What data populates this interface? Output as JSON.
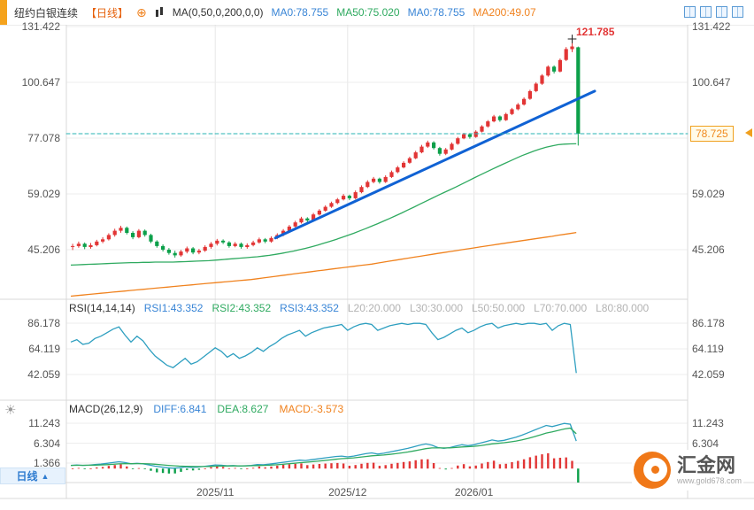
{
  "header": {
    "title": "纽约白银连续",
    "period_tag": "【日线】",
    "ma_group_label": "MA(0,50,0,200,0,0)",
    "ma_values": [
      {
        "label": "MA0:78.755",
        "color": "#3985d6"
      },
      {
        "label": "MA50:75.020",
        "color": "#2faa60"
      },
      {
        "label": "MA0:78.755",
        "color": "#3985d6"
      },
      {
        "label": "MA200:49.07",
        "color": "#f0821e"
      }
    ]
  },
  "price_marker": {
    "peak_label": "121.785",
    "current_label": "78.725"
  },
  "rsi_header": {
    "title": "RSI(14,14,14)",
    "values": [
      {
        "label": "RSI1:43.352",
        "color": "#3985d6"
      },
      {
        "label": "RSI2:43.352",
        "color": "#2faa60"
      },
      {
        "label": "RSI3:43.352",
        "color": "#3985d6"
      }
    ],
    "levels": [
      "L20:20.000",
      "L30:30.000",
      "L50:50.000",
      "L70:70.000",
      "L80:80.000"
    ]
  },
  "macd_header": {
    "title": "MACD(26,12,9)",
    "diff_label": "DIFF:6.841",
    "dea_label": "DEA:8.627",
    "macd_label": "MACD:-3.573"
  },
  "footer": {
    "period_button": "日线",
    "logo_text": "汇金网",
    "logo_url": "www.gold678.com"
  },
  "colors": {
    "up": "#e23535",
    "down": "#0ca04a",
    "ma50": "#2faa60",
    "ma200": "#f0821e",
    "trendline": "#1062d4",
    "rsi_line": "#2e9fc0",
    "price_line": "#27b3b3",
    "diff_line": "#2e9fc0",
    "dea_line": "#2faa60",
    "grid": "#ededed",
    "frame": "#d9d9d9"
  },
  "chart_data": {
    "type": "candlestick",
    "instrument": "纽约白银连续",
    "period": "日线",
    "title": "纽约白银连续【日线】",
    "price_axis": {
      "scale": "log",
      "gridline_prices": [
        131.422,
        100.647,
        77.078,
        59.029,
        45.206
      ]
    },
    "current_price": 78.725,
    "peak_price": 121.785,
    "peak_bar": 83,
    "time_ticks": [
      {
        "label": "2025/11",
        "bar": 24
      },
      {
        "label": "2025/12",
        "bar": 46
      },
      {
        "label": "2026/01",
        "bar": 67
      }
    ],
    "trendline": {
      "start_bar": 34,
      "start_price": 47.8,
      "end_x": 672,
      "end_price": 96.5
    },
    "candles_ohlc": [
      [
        45.8,
        46.4,
        45.2,
        46.0
      ],
      [
        46.0,
        46.9,
        45.7,
        46.5
      ],
      [
        46.5,
        46.7,
        45.4,
        45.8
      ],
      [
        45.8,
        46.6,
        45.5,
        46.2
      ],
      [
        46.2,
        47.3,
        46.0,
        47.0
      ],
      [
        47.0,
        47.9,
        46.7,
        47.5
      ],
      [
        47.5,
        48.8,
        47.3,
        48.5
      ],
      [
        48.5,
        49.9,
        48.2,
        49.5
      ],
      [
        49.5,
        50.6,
        49.1,
        50.2
      ],
      [
        50.2,
        50.4,
        48.7,
        49.0
      ],
      [
        49.0,
        49.3,
        47.6,
        48.0
      ],
      [
        48.0,
        49.8,
        47.8,
        49.5
      ],
      [
        49.5,
        49.7,
        48.2,
        48.5
      ],
      [
        48.5,
        48.7,
        46.7,
        47.0
      ],
      [
        47.0,
        47.2,
        45.7,
        46.0
      ],
      [
        46.0,
        46.3,
        44.9,
        45.2
      ],
      [
        45.2,
        45.5,
        44.2,
        44.5
      ],
      [
        44.5,
        44.9,
        43.6,
        44.0
      ],
      [
        44.0,
        45.1,
        43.8,
        44.8
      ],
      [
        44.8,
        45.8,
        44.5,
        45.5
      ],
      [
        45.5,
        45.7,
        44.3,
        44.6
      ],
      [
        44.6,
        45.3,
        44.3,
        45.0
      ],
      [
        45.0,
        46.1,
        44.8,
        45.8
      ],
      [
        45.8,
        46.8,
        45.5,
        46.5
      ],
      [
        46.5,
        47.5,
        46.2,
        47.2
      ],
      [
        47.2,
        47.4,
        46.5,
        46.8
      ],
      [
        46.8,
        47.0,
        45.7,
        46.0
      ],
      [
        46.0,
        46.8,
        45.8,
        46.5
      ],
      [
        46.5,
        46.7,
        45.5,
        45.8
      ],
      [
        45.8,
        46.5,
        45.5,
        46.2
      ],
      [
        46.2,
        47.1,
        46.0,
        46.8
      ],
      [
        46.8,
        47.8,
        46.6,
        47.5
      ],
      [
        47.5,
        47.7,
        46.7,
        47.0
      ],
      [
        47.0,
        48.1,
        46.8,
        47.8
      ],
      [
        47.8,
        48.8,
        47.6,
        48.5
      ],
      [
        48.5,
        49.8,
        48.3,
        49.5
      ],
      [
        49.5,
        50.8,
        49.3,
        50.5
      ],
      [
        50.5,
        51.8,
        50.3,
        51.5
      ],
      [
        51.5,
        52.8,
        51.3,
        52.5
      ],
      [
        52.5,
        52.7,
        51.6,
        52.0
      ],
      [
        52.0,
        53.8,
        51.8,
        53.5
      ],
      [
        53.5,
        54.8,
        53.3,
        54.5
      ],
      [
        54.5,
        55.8,
        54.3,
        55.5
      ],
      [
        55.5,
        56.8,
        55.3,
        56.5
      ],
      [
        56.5,
        57.8,
        56.3,
        57.5
      ],
      [
        57.5,
        58.9,
        57.3,
        58.5
      ],
      [
        58.5,
        58.7,
        57.4,
        57.8
      ],
      [
        57.8,
        59.9,
        57.6,
        59.5
      ],
      [
        59.5,
        61.4,
        59.3,
        61.0
      ],
      [
        61.0,
        62.9,
        60.8,
        62.5
      ],
      [
        62.5,
        63.9,
        62.2,
        63.5
      ],
      [
        63.5,
        63.7,
        62.1,
        62.5
      ],
      [
        62.5,
        64.4,
        62.3,
        64.0
      ],
      [
        64.0,
        65.9,
        63.8,
        65.5
      ],
      [
        65.5,
        67.4,
        65.3,
        67.0
      ],
      [
        67.0,
        68.9,
        66.8,
        68.5
      ],
      [
        68.5,
        70.4,
        68.3,
        70.0
      ],
      [
        70.0,
        72.4,
        69.8,
        72.0
      ],
      [
        72.0,
        74.5,
        71.8,
        74.0
      ],
      [
        74.0,
        76.0,
        73.7,
        75.5
      ],
      [
        75.5,
        75.8,
        73.1,
        73.5
      ],
      [
        73.5,
        73.8,
        71.0,
        71.5
      ],
      [
        71.5,
        73.4,
        71.2,
        73.0
      ],
      [
        73.0,
        75.4,
        72.8,
        75.0
      ],
      [
        75.0,
        77.4,
        74.8,
        77.0
      ],
      [
        77.0,
        78.9,
        76.8,
        78.5
      ],
      [
        78.5,
        78.8,
        77.0,
        77.5
      ],
      [
        77.5,
        79.9,
        77.3,
        79.5
      ],
      [
        79.5,
        81.9,
        79.3,
        81.5
      ],
      [
        81.5,
        83.9,
        81.2,
        83.5
      ],
      [
        83.5,
        86.0,
        83.3,
        85.5
      ],
      [
        85.5,
        85.8,
        83.5,
        84.0
      ],
      [
        84.0,
        86.9,
        83.8,
        86.5
      ],
      [
        86.5,
        88.9,
        86.2,
        88.5
      ],
      [
        88.5,
        91.0,
        88.2,
        90.5
      ],
      [
        90.5,
        93.5,
        90.2,
        93.0
      ],
      [
        93.0,
        97.0,
        92.7,
        96.5
      ],
      [
        96.5,
        100.5,
        96.2,
        100.0
      ],
      [
        100.0,
        104.5,
        99.6,
        104.0
      ],
      [
        104.0,
        109.0,
        103.6,
        108.5
      ],
      [
        108.5,
        109.0,
        105.2,
        106.0
      ],
      [
        106.0,
        112.6,
        105.7,
        112.0
      ],
      [
        112.0,
        118.9,
        111.6,
        118.0
      ],
      [
        118.0,
        121.785,
        116.5,
        119.5
      ],
      [
        119.0,
        119.2,
        74.5,
        78.725
      ]
    ],
    "ma50": [
      42.0,
      42.05,
      42.1,
      42.15,
      42.2,
      42.25,
      42.3,
      42.35,
      42.4,
      42.45,
      42.5,
      42.5,
      42.55,
      42.55,
      42.6,
      42.6,
      42.6,
      42.6,
      42.65,
      42.7,
      42.75,
      42.8,
      42.85,
      42.9,
      43.0,
      43.1,
      43.2,
      43.3,
      43.4,
      43.5,
      43.6,
      43.7,
      43.85,
      44.0,
      44.2,
      44.4,
      44.65,
      44.9,
      45.2,
      45.5,
      45.85,
      46.2,
      46.6,
      47.0,
      47.45,
      47.9,
      48.4,
      48.9,
      49.45,
      50.0,
      50.6,
      51.2,
      51.85,
      52.5,
      53.2,
      53.9,
      54.65,
      55.4,
      56.2,
      57.0,
      57.8,
      58.6,
      59.4,
      60.2,
      61.0,
      61.9,
      62.8,
      63.7,
      64.6,
      65.5,
      66.4,
      67.3,
      68.2,
      69.1,
      70.0,
      70.9,
      71.7,
      72.5,
      73.2,
      73.8,
      74.3,
      74.7,
      74.9,
      75.0,
      75.02
    ],
    "ma200": [
      36.2,
      36.3,
      36.4,
      36.5,
      36.6,
      36.7,
      36.8,
      36.9,
      37.0,
      37.1,
      37.2,
      37.3,
      37.4,
      37.5,
      37.6,
      37.7,
      37.8,
      37.9,
      38.0,
      38.1,
      38.2,
      38.3,
      38.4,
      38.5,
      38.6,
      38.7,
      38.8,
      38.9,
      39.0,
      39.1,
      39.2,
      39.35,
      39.5,
      39.65,
      39.8,
      39.95,
      40.1,
      40.25,
      40.4,
      40.55,
      40.7,
      40.85,
      41.0,
      41.15,
      41.3,
      41.45,
      41.6,
      41.75,
      41.9,
      42.05,
      42.2,
      42.4,
      42.6,
      42.8,
      43.0,
      43.2,
      43.4,
      43.6,
      43.8,
      44.0,
      44.2,
      44.4,
      44.6,
      44.8,
      45.0,
      45.2,
      45.4,
      45.6,
      45.8,
      46.0,
      46.2,
      46.4,
      46.6,
      46.8,
      47.0,
      47.2,
      47.4,
      47.6,
      47.8,
      48.0,
      48.2,
      48.45,
      48.65,
      48.85,
      49.07
    ],
    "rsi": {
      "axis_values": [
        86.178,
        64.119,
        42.059
      ],
      "series": [
        70,
        72,
        68,
        69,
        73,
        75,
        78,
        81,
        83,
        76,
        70,
        75,
        71,
        64,
        58,
        54,
        50,
        48,
        52,
        56,
        51,
        53,
        57,
        61,
        65,
        62,
        57,
        60,
        56,
        58,
        61,
        65,
        62,
        66,
        69,
        73,
        76,
        78,
        80,
        75,
        78,
        80,
        82,
        83,
        84,
        85,
        80,
        83,
        85,
        86,
        85,
        80,
        82,
        84,
        85,
        86,
        85,
        86,
        86,
        85,
        78,
        72,
        74,
        77,
        80,
        82,
        78,
        80,
        83,
        85,
        86,
        82,
        84,
        85,
        86,
        85,
        86,
        86,
        85,
        86,
        80,
        84,
        86,
        85,
        43.352
      ]
    },
    "macd": {
      "axis_values": [
        11.243,
        6.304,
        1.366
      ],
      "diff": [
        0.8,
        0.9,
        0.8,
        0.85,
        1.0,
        1.1,
        1.3,
        1.5,
        1.7,
        1.5,
        1.2,
        1.3,
        1.2,
        0.9,
        0.6,
        0.4,
        0.2,
        0.1,
        0.2,
        0.4,
        0.3,
        0.35,
        0.5,
        0.7,
        0.9,
        0.85,
        0.7,
        0.75,
        0.65,
        0.7,
        0.8,
        1.0,
        0.95,
        1.1,
        1.3,
        1.5,
        1.7,
        1.9,
        2.1,
        2.0,
        2.2,
        2.4,
        2.6,
        2.8,
        3.0,
        3.1,
        2.9,
        3.1,
        3.4,
        3.7,
        3.9,
        3.6,
        3.8,
        4.1,
        4.4,
        4.7,
        5.0,
        5.4,
        5.8,
        6.1,
        5.8,
        5.2,
        5.0,
        5.2,
        5.6,
        5.9,
        5.7,
        5.9,
        6.3,
        6.7,
        7.1,
        6.8,
        7.0,
        7.4,
        7.8,
        8.3,
        8.9,
        9.5,
        10.1,
        10.7,
        10.4,
        10.8,
        11.2,
        11.0,
        6.841
      ],
      "dea": [
        0.8,
        0.82,
        0.82,
        0.83,
        0.86,
        0.9,
        0.97,
        1.06,
        1.17,
        1.23,
        1.22,
        1.24,
        1.23,
        1.17,
        1.07,
        0.95,
        0.82,
        0.7,
        0.61,
        0.58,
        0.53,
        0.5,
        0.5,
        0.53,
        0.59,
        0.64,
        0.65,
        0.67,
        0.67,
        0.67,
        0.7,
        0.75,
        0.79,
        0.84,
        0.93,
        1.03,
        1.16,
        1.3,
        1.46,
        1.57,
        1.69,
        1.83,
        1.98,
        2.14,
        2.31,
        2.47,
        2.55,
        2.66,
        2.81,
        2.99,
        3.17,
        3.26,
        3.37,
        3.51,
        3.69,
        3.89,
        4.11,
        4.37,
        4.66,
        4.95,
        5.12,
        5.13,
        5.11,
        5.13,
        5.22,
        5.35,
        5.42,
        5.52,
        5.67,
        5.88,
        6.12,
        6.26,
        6.41,
        6.61,
        6.84,
        7.14,
        7.49,
        7.89,
        8.33,
        8.8,
        9.12,
        9.46,
        9.81,
        10.04,
        8.627
      ]
    }
  }
}
